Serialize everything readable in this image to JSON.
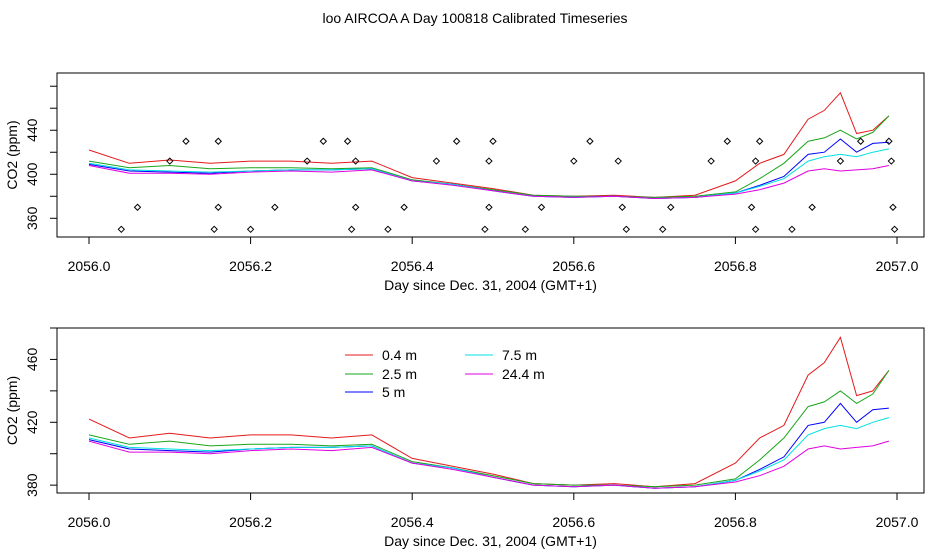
{
  "title": "loo AIRCOA A  Day 100818  Calibrated Timeseries",
  "colors": {
    "0.4 m": "#e41a1c",
    "2.5 m": "#1aa61a",
    "5 m": "#0000ff",
    "7.5 m": "#00e0e0",
    "24.4 m": "#e000e0",
    "points": "#000000"
  },
  "chart_data": [
    {
      "type": "scatter_line",
      "xlabel": "Day since Dec. 31, 2004 (GMT+1)",
      "ylabel": "CO2 (ppm)",
      "xlim": [
        2056.0,
        2057.0
      ],
      "ylim": [
        343,
        492
      ],
      "xticks": [
        "2056.0",
        "2056.2",
        "2056.4",
        "2056.6",
        "2056.8",
        "2057.0"
      ],
      "yticks": [
        "360",
        "400",
        "440"
      ],
      "series": [
        {
          "name": "0.4 m",
          "x": [
            2056.0,
            2056.05,
            2056.1,
            2056.15,
            2056.2,
            2056.25,
            2056.3,
            2056.35,
            2056.4,
            2056.45,
            2056.5,
            2056.55,
            2056.6,
            2056.65,
            2056.7,
            2056.75,
            2056.8,
            2056.83,
            2056.86,
            2056.89,
            2056.91,
            2056.93,
            2056.95,
            2056.97,
            2056.99
          ],
          "y": [
            422,
            410,
            413,
            410,
            412,
            412,
            410,
            412,
            397,
            392,
            387,
            381,
            380,
            381,
            379,
            381,
            394,
            410,
            418,
            450,
            458,
            474,
            437,
            440,
            453
          ]
        },
        {
          "name": "2.5 m",
          "x": [
            2056.0,
            2056.05,
            2056.1,
            2056.15,
            2056.2,
            2056.25,
            2056.3,
            2056.35,
            2056.4,
            2056.45,
            2056.5,
            2056.55,
            2056.6,
            2056.65,
            2056.7,
            2056.75,
            2056.8,
            2056.83,
            2056.86,
            2056.89,
            2056.91,
            2056.93,
            2056.95,
            2056.97,
            2056.99
          ],
          "y": [
            412,
            406,
            408,
            405,
            406,
            406,
            405,
            406,
            395,
            391,
            386,
            381,
            380,
            380,
            379,
            380,
            384,
            396,
            410,
            430,
            433,
            440,
            432,
            438,
            453
          ]
        },
        {
          "name": "5 m",
          "x": [
            2056.0,
            2056.05,
            2056.1,
            2056.15,
            2056.2,
            2056.25,
            2056.3,
            2056.35,
            2056.4,
            2056.45,
            2056.5,
            2056.55,
            2056.6,
            2056.65,
            2056.7,
            2056.75,
            2056.8,
            2056.83,
            2056.86,
            2056.89,
            2056.91,
            2056.93,
            2056.95,
            2056.97,
            2056.99
          ],
          "y": [
            409,
            403,
            402,
            401,
            403,
            404,
            404,
            405,
            394,
            391,
            385,
            380,
            379,
            380,
            378,
            379,
            383,
            390,
            398,
            418,
            420,
            432,
            420,
            428,
            429
          ]
        },
        {
          "name": "7.5 m",
          "x": [
            2056.0,
            2056.05,
            2056.1,
            2056.15,
            2056.2,
            2056.25,
            2056.3,
            2056.35,
            2056.4,
            2056.45,
            2056.5,
            2056.55,
            2056.6,
            2056.65,
            2056.7,
            2056.75,
            2056.8,
            2056.83,
            2056.86,
            2056.89,
            2056.91,
            2056.93,
            2056.95,
            2056.97,
            2056.99
          ],
          "y": [
            410,
            404,
            403,
            402,
            403,
            404,
            404,
            405,
            394,
            391,
            385,
            380,
            379,
            380,
            378,
            379,
            383,
            389,
            396,
            412,
            416,
            418,
            416,
            420,
            423
          ]
        },
        {
          "name": "24.4 m",
          "x": [
            2056.0,
            2056.05,
            2056.1,
            2056.15,
            2056.2,
            2056.25,
            2056.3,
            2056.35,
            2056.4,
            2056.45,
            2056.5,
            2056.55,
            2056.6,
            2056.65,
            2056.7,
            2056.75,
            2056.8,
            2056.83,
            2056.86,
            2056.89,
            2056.91,
            2056.93,
            2056.95,
            2056.97,
            2056.99
          ],
          "y": [
            408,
            401,
            401,
            400,
            402,
            403,
            402,
            404,
            394,
            390,
            385,
            380,
            379,
            380,
            378,
            379,
            382,
            386,
            392,
            403,
            405,
            403,
            404,
            405,
            408
          ]
        }
      ],
      "points": {
        "x": [
          2056.04,
          2056.06,
          2056.1,
          2056.12,
          2056.155,
          2056.16,
          2056.16,
          2056.2,
          2056.23,
          2056.27,
          2056.29,
          2056.32,
          2056.325,
          2056.33,
          2056.33,
          2056.37,
          2056.39,
          2056.43,
          2056.455,
          2056.49,
          2056.495,
          2056.495,
          2056.5,
          2056.54,
          2056.56,
          2056.6,
          2056.62,
          2056.655,
          2056.66,
          2056.665,
          2056.71,
          2056.72,
          2056.77,
          2056.79,
          2056.82,
          2056.825,
          2056.825,
          2056.83,
          2056.87,
          2056.895,
          2056.93,
          2056.955,
          2056.99,
          2056.993,
          2056.995,
          2056.997
        ],
        "y": [
          350,
          370,
          412,
          430,
          350,
          370,
          430,
          350,
          370,
          412,
          430,
          430,
          350,
          370,
          412,
          350,
          370,
          412,
          430,
          350,
          370,
          412,
          430,
          350,
          370,
          412,
          430,
          412,
          370,
          350,
          350,
          370,
          412,
          430,
          370,
          350,
          412,
          430,
          350,
          370,
          412,
          430,
          430,
          412,
          370,
          350
        ]
      }
    },
    {
      "type": "line",
      "xlabel": "Day since Dec. 31, 2004 (GMT+1)",
      "ylabel": "CO2 (ppm)",
      "xlim": [
        2056.0,
        2057.0
      ],
      "ylim": [
        375,
        480
      ],
      "xticks": [
        "2056.0",
        "2056.2",
        "2056.4",
        "2056.6",
        "2056.8",
        "2057.0"
      ],
      "yticks": [
        "380",
        "420",
        "460"
      ],
      "legend": {
        "placement": "top-center",
        "entries": [
          "0.4 m",
          "2.5 m",
          "5 m",
          "7.5 m",
          "24.4 m"
        ]
      },
      "series_ref": "same as panel 1"
    }
  ]
}
